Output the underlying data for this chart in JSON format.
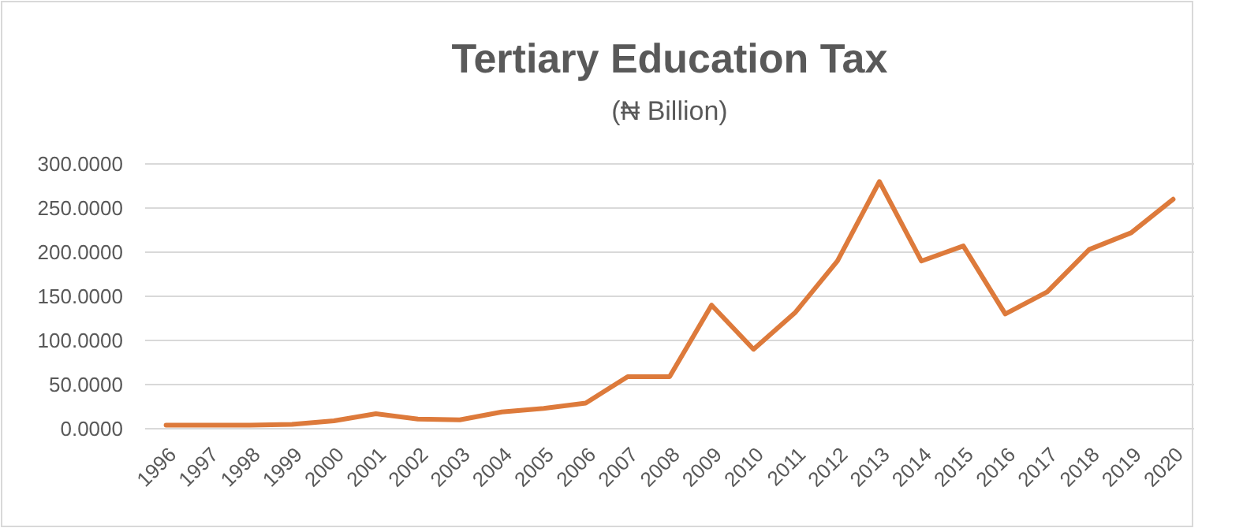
{
  "chart_data": {
    "type": "line",
    "title": "Tertiary Education Tax",
    "subtitle": "(₦ Billion)",
    "categories": [
      "1996",
      "1997",
      "1998",
      "1999",
      "2000",
      "2001",
      "2002",
      "2003",
      "2004",
      "2005",
      "2006",
      "2007",
      "2008",
      "2009",
      "2010",
      "2011",
      "2012",
      "2013",
      "2014",
      "2015",
      "2016",
      "2017",
      "2018",
      "2019",
      "2020"
    ],
    "series": [
      {
        "color": "#dd7a3b",
        "values": [
          4,
          4,
          4,
          5,
          9,
          17,
          11,
          10,
          19,
          23,
          29,
          59,
          59,
          140,
          90,
          132,
          190,
          280,
          190,
          207,
          130,
          155,
          203,
          222,
          260
        ]
      }
    ],
    "ylim": [
      0,
      300
    ],
    "yticks": [
      {
        "value": 0,
        "label": "0.0000"
      },
      {
        "value": 50,
        "label": "50.0000"
      },
      {
        "value": 100,
        "label": "100.0000"
      },
      {
        "value": 150,
        "label": "150.0000"
      },
      {
        "value": 200,
        "label": "200.0000"
      },
      {
        "value": 250,
        "label": "250.0000"
      },
      {
        "value": 300,
        "label": "300.0000"
      }
    ],
    "grid": "y",
    "marker": "none",
    "line_style": "solid"
  }
}
